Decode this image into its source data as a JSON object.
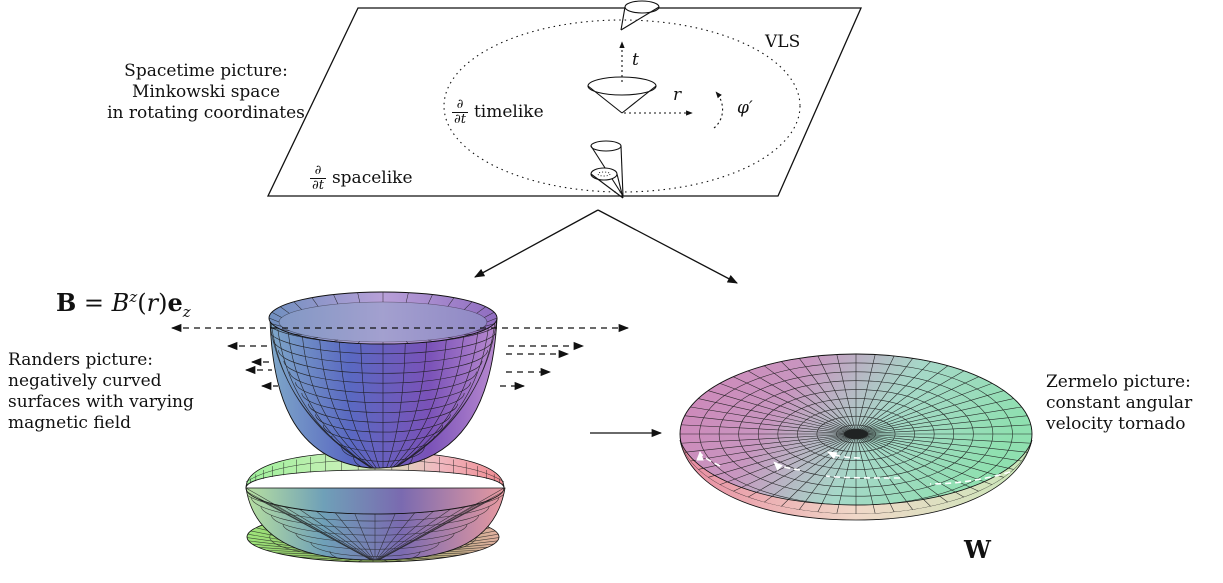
{
  "spacetime": {
    "caption": [
      "Spacetime picture:",
      "Minkowski space",
      "in rotating coordinates"
    ],
    "vls_label": "VLS",
    "t_label": "t",
    "r_label": "r",
    "phi_label": "φ′",
    "dt_num": "∂",
    "dt_den": "∂t",
    "timelike_label": "timelike",
    "spacelike_label": "spacelike"
  },
  "randers": {
    "field_equation": "B = B^z(r) e_z",
    "caption": [
      "Randers picture:",
      "negatively curved",
      "surfaces with varying",
      "magnetic field"
    ]
  },
  "zermelo": {
    "caption": [
      "Zermelo picture:",
      "constant angular",
      "velocity tornado"
    ],
    "wind_label": "W"
  },
  "colors": {
    "ink": "#111111",
    "bowl_top": "#7a5fb0",
    "bowl_mid": "#4f6cc0",
    "disk_pink": "#e68aa6",
    "disk_green": "#8fe0b4",
    "bottom_green": "#7fd97a"
  }
}
